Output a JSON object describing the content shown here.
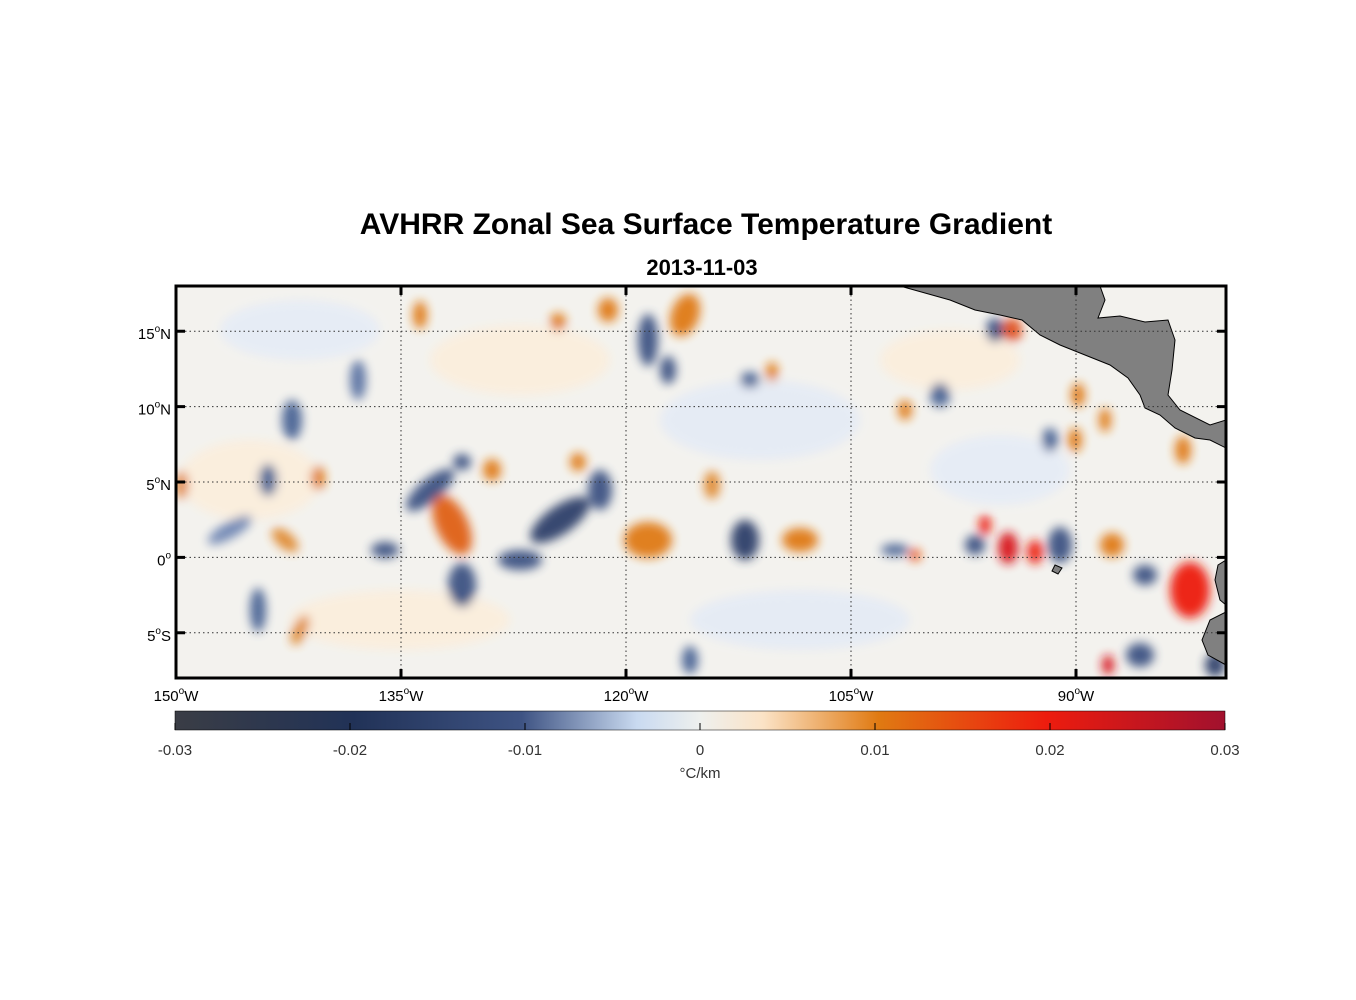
{
  "title": "AVHRR Zonal Sea Surface Temperature Gradient",
  "subtitle": "2013-11-03",
  "map": {
    "lon_range": [
      -150,
      -80
    ],
    "lat_range": [
      -8,
      18
    ],
    "x_ticks": [
      {
        "value": -150,
        "num": "150",
        "hem": "W"
      },
      {
        "value": -135,
        "num": "135",
        "hem": "W"
      },
      {
        "value": -120,
        "num": "120",
        "hem": "W"
      },
      {
        "value": -105,
        "num": "105",
        "hem": "W"
      },
      {
        "value": -90,
        "num": "90",
        "hem": "W"
      }
    ],
    "y_ticks": [
      {
        "value": 15,
        "num": "15",
        "hem": "N"
      },
      {
        "value": 10,
        "num": "10",
        "hem": "N"
      },
      {
        "value": 5,
        "num": "5",
        "hem": "N"
      },
      {
        "value": 0,
        "num": "0",
        "hem": ""
      },
      {
        "value": -5,
        "num": "5",
        "hem": "S"
      }
    ],
    "degree_symbol": "o",
    "land_color": "#808080",
    "grid": "dotted"
  },
  "colorbar": {
    "label": "°C/km",
    "range": [
      -0.03,
      0.03
    ],
    "ticks": [
      "-0.03",
      "-0.02",
      "-0.01",
      "0",
      "0.01",
      "0.02",
      "0.03"
    ],
    "colors": [
      "#3a3d45",
      "#213257",
      "#3e5383",
      "#c9daf0",
      "#eef0ee",
      "#fbe3c6",
      "#e07a12",
      "#ed1c0e",
      "#a1112e"
    ]
  }
}
